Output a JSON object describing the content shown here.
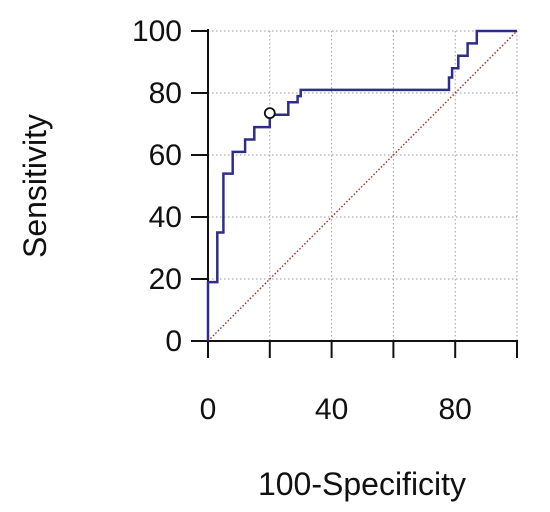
{
  "chart_data": {
    "type": "line",
    "title": "",
    "xlabel": "100-Specificity",
    "ylabel": "Sensitivity",
    "xlim": [
      0,
      100
    ],
    "ylim": [
      0,
      100
    ],
    "x_ticks": [
      0,
      40,
      80
    ],
    "y_ticks": [
      0,
      20,
      40,
      60,
      80,
      100
    ],
    "grid": true,
    "grid_x": [
      0,
      20,
      40,
      60,
      80,
      100
    ],
    "grid_y": [
      0,
      20,
      40,
      60,
      80,
      100
    ],
    "colors": {
      "roc": "#2e2e8a",
      "reference": "#a52a2a",
      "grid": "#9a9a9a",
      "axis": "#111111"
    },
    "series": [
      {
        "style": "step",
        "x": [
          0,
          0,
          3,
          3,
          5,
          5,
          8,
          8,
          12,
          12,
          15,
          15,
          18,
          18,
          20,
          20,
          22,
          22,
          26,
          26,
          29,
          29,
          30,
          30,
          78,
          78,
          79,
          79,
          81,
          81,
          84,
          84,
          87,
          87,
          90,
          90,
          100
        ],
        "y": [
          0,
          19,
          19,
          35,
          35,
          54,
          54,
          61,
          61,
          65,
          65,
          69,
          69,
          69,
          69,
          73,
          73,
          73,
          73,
          77,
          77,
          79,
          79,
          81,
          81,
          85,
          85,
          88,
          88,
          92,
          92,
          96,
          96,
          100,
          100,
          100,
          100
        ]
      },
      {
        "style": "reference",
        "x": [
          0,
          100
        ],
        "y": [
          0,
          100
        ]
      }
    ],
    "marker": {
      "x": 20,
      "y": 73.5
    }
  }
}
